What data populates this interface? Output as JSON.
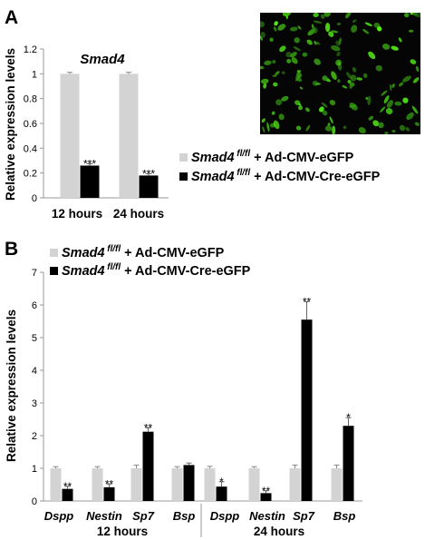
{
  "panel_a": {
    "label": "A",
    "colors": {
      "control": "#d3d3d3",
      "cre": "#000000"
    },
    "legend": [
      {
        "gene": "Smad4",
        "sup": "fl/fl",
        "text": " + Ad-CMV-eGFP",
        "series": "control"
      },
      {
        "gene": "Smad4",
        "sup": "fl/fl",
        "text": " + Ad-CMV-Cre-eGFP",
        "series": "cre"
      }
    ]
  },
  "panel_b": {
    "label": "B",
    "legend": [
      {
        "gene": "Smad4",
        "sup": "fl/fl",
        "text": " + Ad-CMV-eGFP",
        "series": "control"
      },
      {
        "gene": "Smad4",
        "sup": "fl/fl",
        "text": " + Ad-CMV-Cre-eGFP",
        "series": "cre"
      }
    ]
  },
  "chart_data": [
    {
      "type": "bar",
      "title": "Smad4",
      "ylabel": "Relative expression levels",
      "ylim": [
        0,
        1.2
      ],
      "yticks": [
        0,
        0.2,
        0.4,
        0.6,
        0.8,
        1,
        1.2
      ],
      "ytick_labels": [
        "0",
        "0.2",
        "0.4",
        "0.6",
        "0.8",
        "1",
        "1.2"
      ],
      "categories": [
        "12 hours",
        "24 hours"
      ],
      "series": [
        {
          "key": "control",
          "values": [
            1,
            1
          ],
          "errors": [
            0.012,
            0.012
          ],
          "sig": [
            "",
            ""
          ]
        },
        {
          "key": "cre",
          "values": [
            0.26,
            0.18
          ],
          "errors": [
            0.015,
            0.015
          ],
          "sig": [
            "***",
            "***"
          ]
        }
      ]
    },
    {
      "type": "bar",
      "ylabel": "Relative expression levels",
      "ylim": [
        0,
        7
      ],
      "yticks": [
        0,
        1,
        2,
        3,
        4,
        5,
        6,
        7
      ],
      "ytick_labels": [
        "0",
        "1",
        "2",
        "3",
        "4",
        "5",
        "6",
        "7"
      ],
      "categories": [
        "Dspp",
        "Nestin",
        "Sp7",
        "Bsp",
        "Dspp",
        "Nestin",
        "Sp7",
        "Bsp"
      ],
      "groups": [
        "12 hours",
        "24 hours"
      ],
      "series": [
        {
          "key": "control",
          "values": [
            1,
            1,
            1,
            1,
            1,
            1,
            1,
            1
          ],
          "errors": [
            0.05,
            0.05,
            0.1,
            0.05,
            0.06,
            0.05,
            0.1,
            0.1
          ],
          "sig": [
            "",
            "",
            "",
            "",
            "",
            "",
            "",
            ""
          ]
        },
        {
          "key": "cre",
          "values": [
            0.37,
            0.42,
            2.12,
            1.1,
            0.44,
            0.24,
            5.55,
            2.3
          ],
          "errors": [
            0.08,
            0.1,
            0.12,
            0.06,
            0.15,
            0.07,
            0.55,
            0.25
          ],
          "sig": [
            "**",
            "**",
            "**",
            "",
            "*",
            "**",
            "**",
            "*"
          ]
        }
      ]
    }
  ]
}
